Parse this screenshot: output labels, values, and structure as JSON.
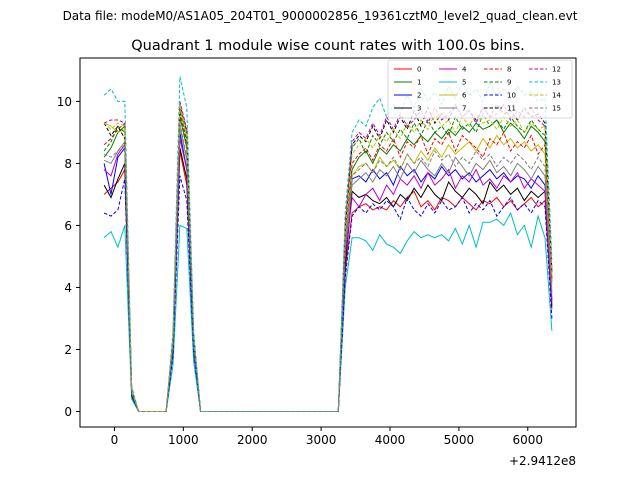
{
  "suptitle": "Data file: modeM0/AS1A05_204T01_9000002856_19361cztM0_level2_quad_clean.evt",
  "chart_data": {
    "type": "line",
    "title": "Quadrant 1 module wise count rates with 100.0s bins.",
    "xlabel": "",
    "ylabel": "",
    "x_offset_label": "+2.9412e8",
    "xlim": [
      -500,
      6700
    ],
    "ylim": [
      -0.5,
      11.4
    ],
    "x_ticks": [
      0,
      1000,
      2000,
      3000,
      4000,
      5000,
      6000
    ],
    "y_ticks": [
      0,
      2,
      4,
      6,
      8,
      10
    ],
    "x_tick_labels": [
      "0",
      "1000",
      "2000",
      "3000",
      "4000",
      "5000",
      "6000"
    ],
    "y_tick_labels": [
      "0",
      "2",
      "4",
      "6",
      "8",
      "10"
    ],
    "grid": false,
    "legend_position": "top-right",
    "x": [
      -150,
      -50,
      50,
      150,
      250,
      350,
      450,
      550,
      650,
      750,
      850,
      950,
      1050,
      1150,
      1250,
      1350,
      1450,
      1550,
      1650,
      1750,
      1850,
      1950,
      2050,
      2150,
      2250,
      2350,
      2450,
      2550,
      2650,
      2750,
      2850,
      2950,
      3050,
      3150,
      3250,
      3350,
      3450,
      3550,
      3650,
      3750,
      3850,
      3950,
      4050,
      4150,
      4250,
      4350,
      4450,
      4550,
      4650,
      4750,
      4850,
      4950,
      5050,
      5150,
      5250,
      5350,
      5450,
      5550,
      5650,
      5750,
      5850,
      5950,
      6050,
      6150,
      6250,
      6350
    ],
    "series": [
      {
        "name": "0",
        "color": "#ff0000",
        "dashed": false,
        "values": [
          7.0,
          7.2,
          7.4,
          7.8,
          0.5,
          0.0,
          0.0,
          0.0,
          0.0,
          0.0,
          2.0,
          8.4,
          7.3,
          2.0,
          0.0,
          0.0,
          0.0,
          0.0,
          0.0,
          0.0,
          0.0,
          0.0,
          0.0,
          0.0,
          0.0,
          0.0,
          0.0,
          0.0,
          0.0,
          0.0,
          0.0,
          0.0,
          0.0,
          0.0,
          0.0,
          4.5,
          6.4,
          6.6,
          6.7,
          6.5,
          6.6,
          6.5,
          6.8,
          6.6,
          6.9,
          7.1,
          6.6,
          6.8,
          6.5,
          6.9,
          6.8,
          6.6,
          6.9,
          6.7,
          6.5,
          6.8,
          6.7,
          6.9,
          6.6,
          6.8,
          6.5,
          6.7,
          6.9,
          6.6,
          6.8,
          3.3
        ]
      },
      {
        "name": "1",
        "color": "#008000",
        "dashed": false,
        "values": [
          8.2,
          8.5,
          9.0,
          9.2,
          0.5,
          0.0,
          0.0,
          0.0,
          0.0,
          0.0,
          2.2,
          9.5,
          8.5,
          2.2,
          0.0,
          0.0,
          0.0,
          0.0,
          0.0,
          0.0,
          0.0,
          0.0,
          0.0,
          0.0,
          0.0,
          0.0,
          0.0,
          0.0,
          0.0,
          0.0,
          0.0,
          0.0,
          0.0,
          0.0,
          0.0,
          5.5,
          7.8,
          8.2,
          8.4,
          8.0,
          8.5,
          8.3,
          8.6,
          8.4,
          8.8,
          8.6,
          8.9,
          8.7,
          9.0,
          8.8,
          9.1,
          8.9,
          9.2,
          9.0,
          9.3,
          9.1,
          9.2,
          9.4,
          9.0,
          9.3,
          9.1,
          8.8,
          9.2,
          9.0,
          8.7,
          4.2
        ]
      },
      {
        "name": "2",
        "color": "#0000ff",
        "dashed": false,
        "values": [
          8.0,
          7.0,
          8.2,
          8.5,
          0.6,
          0.0,
          0.0,
          0.0,
          0.0,
          0.0,
          2.1,
          9.0,
          7.8,
          2.1,
          0.0,
          0.0,
          0.0,
          0.0,
          0.0,
          0.0,
          0.0,
          0.0,
          0.0,
          0.0,
          0.0,
          0.0,
          0.0,
          0.0,
          0.0,
          0.0,
          0.0,
          0.0,
          0.0,
          0.0,
          0.0,
          5.2,
          7.5,
          7.6,
          7.4,
          7.8,
          7.5,
          7.7,
          7.3,
          7.9,
          7.6,
          7.8,
          7.4,
          7.7,
          7.5,
          7.9,
          7.6,
          7.8,
          7.5,
          7.7,
          7.4,
          7.6,
          7.8,
          7.5,
          7.7,
          7.4,
          7.6,
          7.5,
          7.2,
          7.6,
          7.3,
          3.6
        ]
      },
      {
        "name": "3",
        "color": "#000000",
        "dashed": false,
        "values": [
          7.3,
          6.9,
          7.5,
          8.0,
          0.5,
          0.0,
          0.0,
          0.0,
          0.0,
          0.0,
          2.0,
          8.5,
          7.5,
          2.0,
          0.0,
          0.0,
          0.0,
          0.0,
          0.0,
          0.0,
          0.0,
          0.0,
          0.0,
          0.0,
          0.0,
          0.0,
          0.0,
          0.0,
          0.0,
          0.0,
          0.0,
          0.0,
          0.0,
          0.0,
          0.0,
          4.7,
          7.1,
          6.9,
          7.0,
          6.8,
          6.7,
          6.9,
          6.6,
          7.0,
          6.8,
          7.2,
          6.9,
          7.3,
          7.0,
          6.8,
          7.4,
          7.1,
          6.9,
          7.2,
          7.0,
          6.7,
          7.4,
          7.1,
          7.3,
          7.0,
          7.2,
          6.8,
          7.1,
          6.9,
          7.1,
          3.4
        ]
      },
      {
        "name": "4",
        "color": "#bf00bf",
        "dashed": false,
        "values": [
          7.8,
          7.6,
          8.3,
          8.6,
          0.6,
          0.0,
          0.0,
          0.0,
          0.0,
          0.0,
          2.1,
          8.8,
          7.8,
          2.1,
          0.0,
          0.0,
          0.0,
          0.0,
          0.0,
          0.0,
          0.0,
          0.0,
          0.0,
          0.0,
          0.0,
          0.0,
          0.0,
          0.0,
          0.0,
          0.0,
          0.0,
          0.0,
          0.0,
          0.0,
          0.0,
          5.0,
          6.9,
          6.6,
          7.0,
          7.2,
          6.8,
          7.3,
          7.0,
          7.5,
          7.3,
          7.6,
          7.2,
          7.7,
          7.3,
          7.5,
          7.8,
          7.2,
          7.6,
          7.4,
          7.8,
          7.3,
          7.5,
          7.2,
          7.6,
          7.4,
          7.7,
          7.2,
          7.5,
          7.3,
          7.1,
          3.5
        ]
      },
      {
        "name": "5",
        "color": "#00bfbf",
        "dashed": false,
        "values": [
          5.6,
          5.8,
          5.3,
          6.0,
          0.4,
          0.0,
          0.0,
          0.0,
          0.0,
          0.0,
          1.5,
          6.0,
          5.9,
          1.6,
          0.0,
          0.0,
          0.0,
          0.0,
          0.0,
          0.0,
          0.0,
          0.0,
          0.0,
          0.0,
          0.0,
          0.0,
          0.0,
          0.0,
          0.0,
          0.0,
          0.0,
          0.0,
          0.0,
          0.0,
          0.0,
          4.0,
          5.6,
          5.6,
          5.5,
          5.2,
          5.7,
          5.4,
          5.3,
          5.1,
          5.5,
          5.8,
          5.6,
          5.7,
          5.6,
          5.7,
          5.5,
          5.9,
          5.4,
          6.0,
          5.3,
          6.1,
          6.1,
          6.2,
          6.0,
          6.4,
          5.7,
          6.0,
          5.3,
          6.3,
          5.6,
          2.6
        ]
      },
      {
        "name": "6",
        "color": "#bfbf00",
        "dashed": false,
        "values": [
          9.3,
          9.2,
          9.0,
          9.1,
          0.7,
          0.0,
          0.0,
          0.0,
          0.0,
          0.0,
          2.3,
          9.8,
          8.8,
          2.3,
          0.0,
          0.0,
          0.0,
          0.0,
          0.0,
          0.0,
          0.0,
          0.0,
          0.0,
          0.0,
          0.0,
          0.0,
          0.0,
          0.0,
          0.0,
          0.0,
          0.0,
          0.0,
          0.0,
          0.0,
          0.0,
          5.6,
          7.6,
          7.9,
          8.0,
          7.7,
          8.2,
          7.9,
          8.1,
          7.8,
          8.3,
          8.0,
          8.4,
          8.1,
          8.5,
          8.2,
          8.6,
          8.3,
          8.5,
          8.7,
          8.4,
          8.8,
          8.5,
          8.9,
          8.6,
          8.8,
          8.5,
          8.7,
          8.4,
          8.6,
          8.3,
          4.1
        ]
      },
      {
        "name": "7",
        "color": "#808080",
        "dashed": false,
        "values": [
          8.1,
          8.0,
          8.4,
          8.7,
          0.6,
          0.0,
          0.0,
          0.0,
          0.0,
          0.0,
          2.2,
          9.2,
          8.1,
          2.2,
          0.0,
          0.0,
          0.0,
          0.0,
          0.0,
          0.0,
          0.0,
          0.0,
          0.0,
          0.0,
          0.0,
          0.0,
          0.0,
          0.0,
          0.0,
          0.0,
          0.0,
          0.0,
          0.0,
          0.0,
          0.0,
          5.3,
          7.3,
          7.5,
          7.7,
          7.4,
          7.8,
          7.6,
          7.9,
          7.5,
          8.0,
          7.7,
          8.1,
          7.8,
          7.6,
          8.0,
          7.7,
          8.2,
          7.9,
          7.6,
          8.0,
          7.8,
          8.1,
          7.7,
          7.9,
          7.6,
          8.0,
          7.8,
          7.5,
          7.9,
          7.6,
          3.8
        ]
      },
      {
        "name": "8",
        "color": "#ff0000",
        "dashed": true,
        "values": [
          8.6,
          8.8,
          9.1,
          9.3,
          0.6,
          0.0,
          0.0,
          0.0,
          0.0,
          0.0,
          2.3,
          9.6,
          8.6,
          2.3,
          0.0,
          0.0,
          0.0,
          0.0,
          0.0,
          0.0,
          0.0,
          0.0,
          0.0,
          0.0,
          0.0,
          0.0,
          0.0,
          0.0,
          0.0,
          0.0,
          0.0,
          0.0,
          0.0,
          0.0,
          0.0,
          5.7,
          8.0,
          8.3,
          8.5,
          8.1,
          8.6,
          8.4,
          8.8,
          8.2,
          8.7,
          8.5,
          8.9,
          8.3,
          8.8,
          8.6,
          9.0,
          8.4,
          8.9,
          8.7,
          8.5,
          8.2,
          8.8,
          8.6,
          9.0,
          8.4,
          8.7,
          8.5,
          8.9,
          8.3,
          8.6,
          4.3
        ]
      },
      {
        "name": "9",
        "color": "#008000",
        "dashed": true,
        "values": [
          8.4,
          8.7,
          9.2,
          9.0,
          0.6,
          0.0,
          0.0,
          0.0,
          0.0,
          0.0,
          2.3,
          9.7,
          8.7,
          2.3,
          0.0,
          0.0,
          0.0,
          0.0,
          0.0,
          0.0,
          0.0,
          0.0,
          0.0,
          0.0,
          0.0,
          0.0,
          0.0,
          0.0,
          0.0,
          0.0,
          0.0,
          0.0,
          0.0,
          0.0,
          0.0,
          5.8,
          8.5,
          8.8,
          8.3,
          8.9,
          8.6,
          9.0,
          8.7,
          9.1,
          8.8,
          9.3,
          8.9,
          9.4,
          9.0,
          9.2,
          8.9,
          9.5,
          9.1,
          9.3,
          9.0,
          9.6,
          9.2,
          9.4,
          9.1,
          9.5,
          9.2,
          9.0,
          9.4,
          9.1,
          8.9,
          4.4
        ]
      },
      {
        "name": "10",
        "color": "#0000ff",
        "dashed": true,
        "values": [
          6.4,
          6.3,
          6.5,
          7.5,
          0.5,
          0.0,
          0.0,
          0.0,
          0.0,
          0.0,
          1.8,
          7.6,
          6.8,
          1.9,
          0.0,
          0.0,
          0.0,
          0.0,
          0.0,
          0.0,
          0.0,
          0.0,
          0.0,
          0.0,
          0.0,
          0.0,
          0.0,
          0.0,
          0.0,
          0.0,
          0.0,
          0.0,
          0.0,
          0.0,
          0.0,
          4.3,
          6.3,
          6.6,
          6.4,
          6.7,
          6.5,
          6.8,
          6.6,
          6.2,
          6.9,
          6.5,
          6.3,
          6.7,
          6.4,
          6.8,
          6.5,
          6.6,
          6.9,
          6.4,
          6.7,
          6.5,
          6.8,
          6.3,
          6.6,
          6.9,
          6.5,
          6.7,
          6.4,
          6.8,
          6.6,
          3.0
        ]
      },
      {
        "name": "11",
        "color": "#000000",
        "dashed": true,
        "values": [
          9.3,
          8.9,
          9.2,
          8.8,
          0.7,
          0.0,
          0.0,
          0.0,
          0.0,
          0.0,
          2.4,
          9.9,
          9.0,
          2.4,
          0.0,
          0.0,
          0.0,
          0.0,
          0.0,
          0.0,
          0.0,
          0.0,
          0.0,
          0.0,
          0.0,
          0.0,
          0.0,
          0.0,
          0.0,
          0.0,
          0.0,
          0.0,
          0.0,
          0.0,
          0.0,
          5.9,
          8.6,
          8.9,
          8.7,
          9.2,
          8.8,
          9.4,
          9.0,
          9.5,
          9.1,
          9.7,
          9.2,
          9.8,
          9.3,
          9.6,
          9.4,
          9.9,
          9.5,
          9.7,
          9.4,
          9.8,
          9.5,
          9.9,
          9.6,
          9.7,
          9.4,
          9.8,
          9.5,
          9.6,
          9.3,
          4.5
        ]
      },
      {
        "name": "12",
        "color": "#bf00bf",
        "dashed": true,
        "values": [
          9.3,
          9.4,
          9.4,
          9.3,
          0.7,
          0.0,
          0.0,
          0.0,
          0.0,
          0.0,
          2.4,
          10.0,
          9.1,
          2.4,
          0.0,
          0.0,
          0.0,
          0.0,
          0.0,
          0.0,
          0.0,
          0.0,
          0.0,
          0.0,
          0.0,
          0.0,
          0.0,
          0.0,
          0.0,
          0.0,
          0.0,
          0.0,
          0.0,
          0.0,
          0.0,
          6.0,
          8.7,
          9.0,
          8.8,
          9.3,
          8.9,
          9.5,
          9.1,
          9.6,
          9.2,
          9.4,
          9.7,
          9.3,
          9.8,
          9.4,
          9.6,
          9.9,
          9.5,
          9.7,
          9.3,
          9.8,
          9.5,
          9.6,
          9.9,
          9.4,
          9.7,
          9.5,
          9.8,
          9.4,
          9.2,
          4.6
        ]
      },
      {
        "name": "13",
        "color": "#00bfbf",
        "dashed": true,
        "values": [
          10.2,
          10.4,
          10.0,
          10.0,
          0.8,
          0.0,
          0.0,
          0.0,
          0.0,
          0.0,
          2.6,
          10.8,
          9.8,
          2.6,
          0.0,
          0.0,
          0.0,
          0.0,
          0.0,
          0.0,
          0.0,
          0.0,
          0.0,
          0.0,
          0.0,
          0.0,
          0.0,
          0.0,
          0.0,
          0.0,
          0.0,
          0.0,
          0.0,
          0.0,
          0.0,
          6.4,
          9.0,
          9.4,
          9.2,
          9.8,
          10.1,
          9.5,
          9.9,
          9.6,
          10.2,
          9.8,
          10.4,
          10.0,
          10.3,
          9.9,
          10.5,
          10.1,
          10.6,
          10.2,
          10.4,
          10.0,
          10.6,
          10.2,
          10.4,
          10.1,
          10.5,
          10.2,
          10.3,
          10.0,
          10.1,
          4.9
        ]
      },
      {
        "name": "14",
        "color": "#bfbf00",
        "dashed": true,
        "values": [
          9.3,
          9.1,
          9.3,
          9.2,
          0.7,
          0.0,
          0.0,
          0.0,
          0.0,
          0.0,
          2.4,
          9.9,
          8.9,
          2.4,
          0.0,
          0.0,
          0.0,
          0.0,
          0.0,
          0.0,
          0.0,
          0.0,
          0.0,
          0.0,
          0.0,
          0.0,
          0.0,
          0.0,
          0.0,
          0.0,
          0.0,
          0.0,
          0.0,
          0.0,
          0.0,
          5.8,
          8.3,
          8.6,
          8.8,
          8.5,
          8.9,
          8.7,
          9.1,
          8.8,
          9.3,
          9.0,
          9.4,
          9.1,
          9.6,
          9.2,
          9.4,
          9.0,
          9.5,
          9.2,
          9.6,
          9.3,
          9.4,
          9.1,
          9.5,
          9.2,
          9.4,
          9.0,
          9.3,
          9.1,
          9.2,
          4.4
        ]
      },
      {
        "name": "15",
        "color": "#808080",
        "dashed": true,
        "values": [
          8.3,
          8.2,
          8.4,
          8.6,
          0.6,
          0.0,
          0.0,
          0.0,
          0.0,
          0.0,
          2.2,
          9.3,
          8.2,
          2.2,
          0.0,
          0.0,
          0.0,
          0.0,
          0.0,
          0.0,
          0.0,
          0.0,
          0.0,
          0.0,
          0.0,
          0.0,
          0.0,
          0.0,
          0.0,
          0.0,
          0.0,
          0.0,
          0.0,
          0.0,
          0.0,
          5.4,
          7.6,
          7.8,
          8.0,
          7.7,
          8.1,
          7.9,
          8.2,
          7.8,
          8.3,
          8.0,
          8.2,
          7.9,
          8.4,
          8.1,
          8.3,
          7.9,
          8.2,
          8.0,
          8.4,
          8.1,
          8.3,
          7.9,
          8.2,
          8.0,
          8.3,
          8.1,
          7.8,
          8.2,
          7.9,
          3.9
        ]
      }
    ]
  }
}
